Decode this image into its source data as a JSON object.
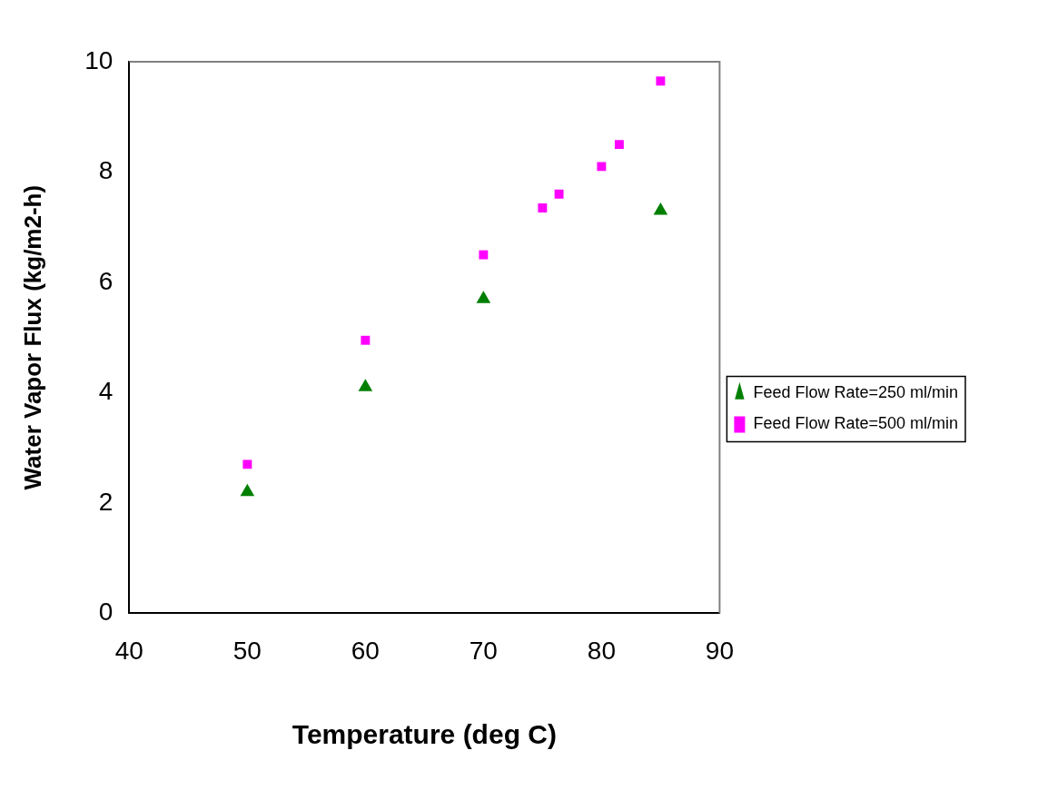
{
  "chart_data": {
    "type": "scatter",
    "xlabel": "Temperature (deg C)",
    "ylabel": "Water Vapor Flux (kg/m2-h)",
    "xlim": [
      40,
      90
    ],
    "xticks": [
      40,
      50,
      60,
      70,
      80,
      90
    ],
    "ylim": [
      0,
      10
    ],
    "yticks": [
      0,
      2,
      4,
      6,
      8,
      10
    ],
    "grid": false,
    "legend": "right",
    "series": [
      {
        "name": "Feed Flow Rate=250 ml/min",
        "color": "#007f00",
        "marker": "triangle",
        "x": [
          50,
          60,
          70,
          85
        ],
        "values": [
          2.2,
          4.1,
          5.7,
          7.3
        ]
      },
      {
        "name": "Feed Flow Rate=500 ml/min",
        "color": "#ff00ff",
        "marker": "square",
        "x": [
          50,
          60,
          70,
          75,
          76.4,
          80,
          81.5,
          85
        ],
        "values": [
          2.7,
          4.95,
          6.5,
          7.35,
          7.6,
          8.1,
          8.5,
          9.65
        ]
      }
    ]
  }
}
